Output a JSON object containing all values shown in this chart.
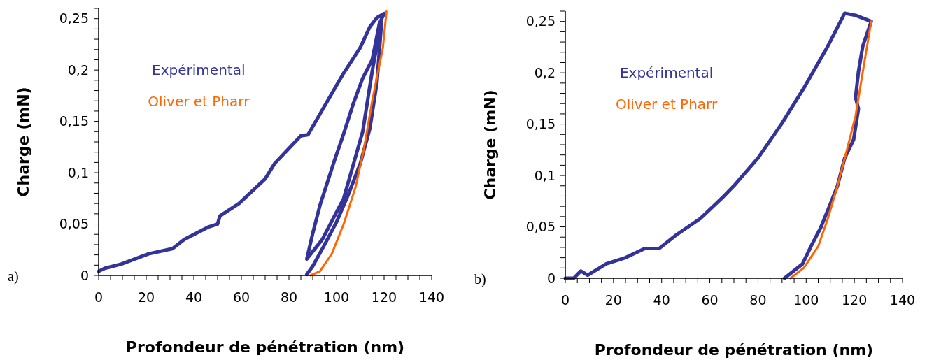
{
  "chart_data": [
    {
      "type": "line",
      "xlabel": "Profondeur de pénétration (nm)",
      "ylabel": "Charge (mN)",
      "annotations": [
        "a)"
      ],
      "legend": "top left",
      "marker": "none",
      "line_style": "solid",
      "grid": false,
      "xlim": [
        0,
        140
      ],
      "ylim": [
        0,
        0.26
      ],
      "xticks": [
        0,
        {
          "value": 5,
          "label": null
        },
        {
          "value": 10,
          "label": null
        },
        {
          "value": 15,
          "label": null
        },
        20,
        {
          "value": 25,
          "label": null
        },
        {
          "value": 30,
          "label": null
        },
        {
          "value": 35,
          "label": null
        },
        40,
        {
          "value": 45,
          "label": null
        },
        {
          "value": 50,
          "label": null
        },
        {
          "value": 55,
          "label": null
        },
        60,
        {
          "value": 65,
          "label": null
        },
        {
          "value": 70,
          "label": null
        },
        {
          "value": 75,
          "label": null
        },
        80,
        {
          "value": 85,
          "label": null
        },
        {
          "value": 90,
          "label": null
        },
        {
          "value": 95,
          "label": null
        },
        100,
        {
          "value": 105,
          "label": null
        },
        {
          "value": 110,
          "label": null
        },
        {
          "value": 115,
          "label": null
        },
        120,
        {
          "value": 125,
          "label": null
        },
        {
          "value": 130,
          "label": null
        },
        {
          "value": 135,
          "label": null
        },
        140
      ],
      "yticks": [
        0,
        {
          "value": 0.01,
          "label": null
        },
        {
          "value": 0.02,
          "label": null
        },
        {
          "value": 0.03,
          "label": null
        },
        {
          "value": 0.04,
          "label": null
        },
        {
          "value": 0.05,
          "label": "0,05"
        },
        {
          "value": 0.06,
          "label": null
        },
        {
          "value": 0.07,
          "label": null
        },
        {
          "value": 0.08,
          "label": null
        },
        {
          "value": 0.09,
          "label": null
        },
        {
          "value": 0.1,
          "label": "0,1"
        },
        {
          "value": 0.11,
          "label": null
        },
        {
          "value": 0.12,
          "label": null
        },
        {
          "value": 0.13,
          "label": null
        },
        {
          "value": 0.14,
          "label": null
        },
        {
          "value": 0.15,
          "label": "0,15"
        },
        {
          "value": 0.16,
          "label": null
        },
        {
          "value": 0.17,
          "label": null
        },
        {
          "value": 0.18,
          "label": null
        },
        {
          "value": 0.19,
          "label": null
        },
        {
          "value": 0.2,
          "label": "0,2"
        },
        {
          "value": 0.21,
          "label": null
        },
        {
          "value": 0.22,
          "label": null
        },
        {
          "value": 0.23,
          "label": null
        },
        {
          "value": 0.24,
          "label": null
        },
        {
          "value": 0.25,
          "label": "0,25"
        },
        {
          "value": 0.26,
          "label": null
        }
      ],
      "series": [
        {
          "name": "Expérimental",
          "color": "#333399",
          "x": [
            0,
            2.6,
            9.4,
            21,
            31,
            36,
            46,
            50,
            51,
            59,
            70,
            74,
            85,
            88,
            95,
            103,
            110,
            114,
            117,
            120,
            118,
            115,
            111,
            107,
            103,
            99,
            93,
            90,
            87.5,
            94,
            103,
            111,
            115,
            119,
            117,
            114,
            110,
            105,
            100,
            95,
            90,
            87.5
          ],
          "values": [
            0.004,
            0.007,
            0.011,
            0.021,
            0.026,
            0.035,
            0.047,
            0.05,
            0.058,
            0.07,
            0.094,
            0.109,
            0.136,
            0.137,
            0.165,
            0.197,
            0.222,
            0.242,
            0.251,
            0.255,
            0.245,
            0.21,
            0.192,
            0.167,
            0.138,
            0.111,
            0.068,
            0.041,
            0.016,
            0.035,
            0.075,
            0.14,
            0.199,
            0.249,
            0.188,
            0.143,
            0.109,
            0.079,
            0.052,
            0.03,
            0.009,
            0.001
          ]
        },
        {
          "name": "Oliver et Pharr",
          "color": "#ff6600",
          "x": [
            89,
            93,
            98,
            103,
            108,
            111.5,
            115,
            119.5,
            121
          ],
          "values": [
            0,
            0.004,
            0.021,
            0.05,
            0.086,
            0.123,
            0.17,
            0.222,
            0.257
          ]
        }
      ]
    },
    {
      "type": "line",
      "xlabel": "Profondeur de pénétration (nm)",
      "ylabel": "Charge (mN)",
      "annotations": [
        "b)"
      ],
      "legend": "top left",
      "marker": "none",
      "line_style": "solid",
      "grid": false,
      "xlim": [
        0,
        140
      ],
      "ylim": [
        0,
        0.26
      ],
      "xticks": [
        0,
        {
          "value": 5,
          "label": null
        },
        {
          "value": 10,
          "label": null
        },
        {
          "value": 15,
          "label": null
        },
        20,
        {
          "value": 25,
          "label": null
        },
        {
          "value": 30,
          "label": null
        },
        {
          "value": 35,
          "label": null
        },
        40,
        {
          "value": 45,
          "label": null
        },
        {
          "value": 50,
          "label": null
        },
        {
          "value": 55,
          "label": null
        },
        60,
        {
          "value": 65,
          "label": null
        },
        {
          "value": 70,
          "label": null
        },
        {
          "value": 75,
          "label": null
        },
        80,
        {
          "value": 85,
          "label": null
        },
        {
          "value": 90,
          "label": null
        },
        {
          "value": 95,
          "label": null
        },
        100,
        {
          "value": 105,
          "label": null
        },
        {
          "value": 110,
          "label": null
        },
        {
          "value": 115,
          "label": null
        },
        120,
        {
          "value": 125,
          "label": null
        },
        {
          "value": 130,
          "label": null
        },
        {
          "value": 135,
          "label": null
        },
        140
      ],
      "yticks": [
        0,
        {
          "value": 0.01,
          "label": null
        },
        {
          "value": 0.02,
          "label": null
        },
        {
          "value": 0.03,
          "label": null
        },
        {
          "value": 0.04,
          "label": null
        },
        {
          "value": 0.05,
          "label": "0,05"
        },
        {
          "value": 0.06,
          "label": null
        },
        {
          "value": 0.07,
          "label": null
        },
        {
          "value": 0.08,
          "label": null
        },
        {
          "value": 0.09,
          "label": null
        },
        {
          "value": 0.1,
          "label": "0,1"
        },
        {
          "value": 0.11,
          "label": null
        },
        {
          "value": 0.12,
          "label": null
        },
        {
          "value": 0.13,
          "label": null
        },
        {
          "value": 0.14,
          "label": null
        },
        {
          "value": 0.15,
          "label": "0,15"
        },
        {
          "value": 0.16,
          "label": null
        },
        {
          "value": 0.17,
          "label": null
        },
        {
          "value": 0.18,
          "label": null
        },
        {
          "value": 0.19,
          "label": null
        },
        {
          "value": 0.2,
          "label": "0,2"
        },
        {
          "value": 0.21,
          "label": null
        },
        {
          "value": 0.22,
          "label": null
        },
        {
          "value": 0.23,
          "label": null
        },
        {
          "value": 0.24,
          "label": null
        },
        {
          "value": 0.25,
          "label": "0,25"
        },
        {
          "value": 0.26,
          "label": null
        }
      ],
      "series": [
        {
          "name": "Expérimental",
          "color": "#333399",
          "x": [
            0,
            3.5,
            6.4,
            9.3,
            17,
            25,
            33,
            39,
            46,
            56,
            65,
            70,
            80,
            90,
            99,
            109,
            116,
            120.5,
            127,
            123.5,
            121.7,
            120.5,
            121.7,
            119.7,
            116,
            113,
            110,
            106,
            102,
            98.5,
            91
          ],
          "values": [
            0,
            0,
            0.007,
            0.003,
            0.014,
            0.02,
            0.029,
            0.029,
            0.042,
            0.058,
            0.078,
            0.09,
            0.117,
            0.151,
            0.185,
            0.226,
            0.258,
            0.256,
            0.25,
            0.226,
            0.201,
            0.176,
            0.165,
            0.135,
            0.117,
            0.09,
            0.072,
            0.049,
            0.031,
            0.014,
            0
          ]
        },
        {
          "name": "Oliver et Pharr",
          "color": "#ff6600",
          "x": [
            127,
            124,
            120.5,
            116.8,
            113,
            109,
            105,
            99,
            93.5
          ],
          "values": [
            0.25,
            0.208,
            0.158,
            0.124,
            0.09,
            0.058,
            0.031,
            0.01,
            0
          ]
        }
      ]
    }
  ]
}
